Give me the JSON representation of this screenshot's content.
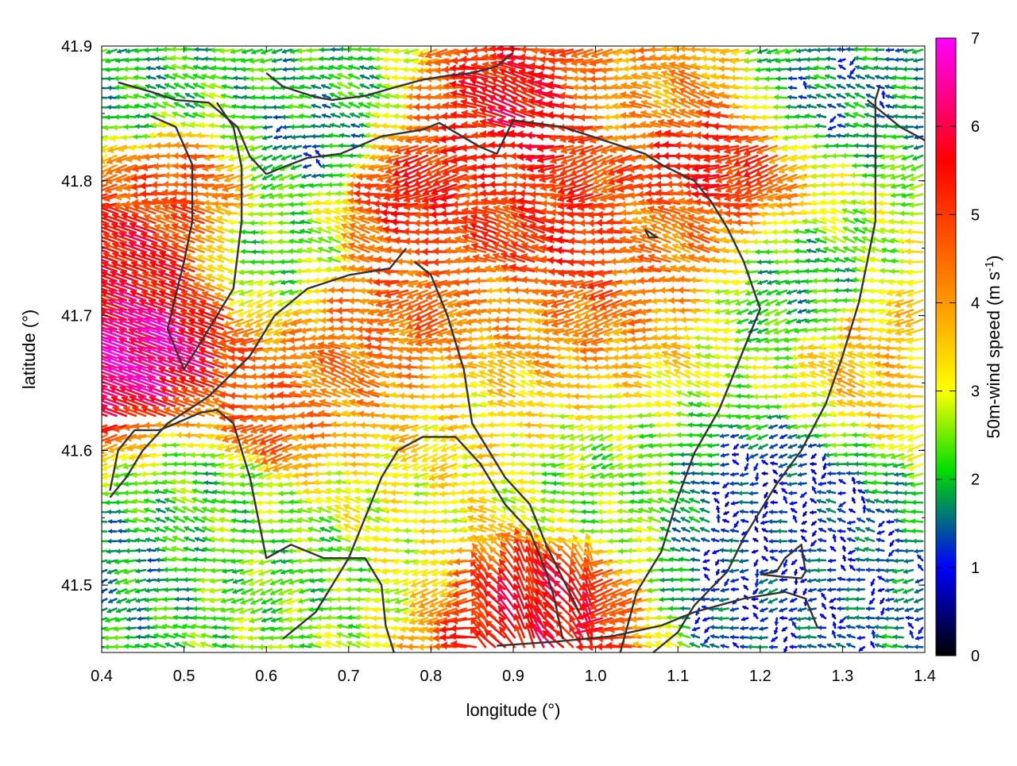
{
  "chart_data": {
    "type": "vector-field",
    "xlabel": "longitude (°)",
    "ylabel": "latitude (°)",
    "xlim": [
      0.4,
      1.4
    ],
    "ylim": [
      41.45,
      41.9
    ],
    "xticks": [
      "0.4",
      "0.5",
      "0.6",
      "0.7",
      "0.8",
      "0.9",
      "1.0",
      "1.1",
      "1.2",
      "1.3",
      "1.4"
    ],
    "yticks": [
      "41.5",
      "41.6",
      "41.7",
      "41.8",
      "41.9"
    ],
    "colorbar": {
      "label": "50m-wind speed (m s",
      "label_sup": "-1",
      "label_end": ")",
      "range": [
        0,
        7
      ],
      "ticks": [
        "0",
        "1",
        "2",
        "3",
        "4",
        "5",
        "6",
        "7"
      ],
      "palette": [
        "#000000",
        "#0000ff",
        "#00dd00",
        "#ffff00",
        "#ff9900",
        "#ff0000",
        "#ff00ff"
      ]
    },
    "grid": false,
    "field_regions": [
      {
        "lon": 0.46,
        "lat": 41.67,
        "speed": 6.5
      },
      {
        "lon": 0.44,
        "lat": 41.74,
        "speed": 5.6
      },
      {
        "lon": 0.5,
        "lat": 41.79,
        "speed": 4.8
      },
      {
        "lon": 0.6,
        "lat": 41.62,
        "speed": 4.6
      },
      {
        "lon": 0.8,
        "lat": 41.79,
        "speed": 5.3
      },
      {
        "lon": 0.9,
        "lat": 41.77,
        "speed": 5.0
      },
      {
        "lon": 0.97,
        "lat": 41.76,
        "speed": 5.2
      },
      {
        "lon": 0.8,
        "lat": 41.72,
        "speed": 4.6
      },
      {
        "lon": 0.75,
        "lat": 41.68,
        "speed": 4.4
      },
      {
        "lon": 0.9,
        "lat": 41.7,
        "speed": 4.0
      },
      {
        "lon": 0.86,
        "lat": 41.63,
        "speed": 3.3
      },
      {
        "lon": 1.14,
        "lat": 41.81,
        "speed": 5.3
      },
      {
        "lon": 1.1,
        "lat": 41.76,
        "speed": 4.3
      },
      {
        "lon": 1.06,
        "lat": 41.86,
        "speed": 4.0
      },
      {
        "lon": 0.95,
        "lat": 41.48,
        "speed": 5.6
      },
      {
        "lon": 0.93,
        "lat": 41.85,
        "speed": 5.6
      },
      {
        "lon": 1.35,
        "lat": 41.67,
        "speed": 3.6
      },
      {
        "lon": 0.55,
        "lat": 41.58,
        "speed": 2.2
      },
      {
        "lon": 1.22,
        "lat": 41.56,
        "speed": 1.1
      },
      {
        "lon": 1.2,
        "lat": 41.5,
        "speed": 1.2
      },
      {
        "lon": 0.42,
        "lat": 41.52,
        "speed": 1.8
      },
      {
        "lon": 0.66,
        "lat": 41.52,
        "speed": 2.3
      },
      {
        "lon": 0.45,
        "lat": 41.87,
        "speed": 2.0
      },
      {
        "lon": 0.66,
        "lat": 41.87,
        "speed": 2.0
      },
      {
        "lon": 0.66,
        "lat": 41.83,
        "speed": 1.6
      },
      {
        "lon": 1.3,
        "lat": 41.87,
        "speed": 1.6
      },
      {
        "lon": 1.25,
        "lat": 41.72,
        "speed": 2.0
      },
      {
        "lon": 1.0,
        "lat": 41.57,
        "speed": 2.5
      },
      {
        "lon": 0.74,
        "lat": 41.55,
        "speed": 3.0
      },
      {
        "lon": 0.62,
        "lat": 41.75,
        "speed": 2.3
      }
    ],
    "contours": [
      [
        [
          0.42,
          41.873
        ],
        [
          0.46,
          41.866
        ],
        [
          0.49,
          41.86
        ],
        [
          0.53,
          41.858
        ],
        [
          0.565,
          41.84
        ],
        [
          0.58,
          41.818
        ],
        [
          0.6,
          41.805
        ],
        [
          0.62,
          41.81
        ],
        [
          0.65,
          41.817
        ],
        [
          0.69,
          41.82
        ],
        [
          0.74,
          41.833
        ],
        [
          0.79,
          41.838
        ],
        [
          0.81,
          41.843
        ],
        [
          0.86,
          41.825
        ],
        [
          0.88,
          41.82
        ],
        [
          0.9,
          41.845
        ],
        [
          0.96,
          41.84
        ],
        [
          1.01,
          41.83
        ],
        [
          1.06,
          41.82
        ],
        [
          1.08,
          41.812
        ],
        [
          1.12,
          41.8
        ],
        [
          1.14,
          41.785
        ],
        [
          1.16,
          41.765
        ],
        [
          1.18,
          41.74
        ],
        [
          1.2,
          41.705
        ],
        [
          1.18,
          41.675
        ],
        [
          1.15,
          41.63
        ],
        [
          1.12,
          41.598
        ],
        [
          1.1,
          41.565
        ],
        [
          1.08,
          41.525
        ],
        [
          1.05,
          41.495
        ],
        [
          1.03,
          41.45
        ]
      ],
      [
        [
          0.46,
          41.848
        ],
        [
          0.49,
          41.84
        ],
        [
          0.51,
          41.812
        ],
        [
          0.51,
          41.77
        ],
        [
          0.5,
          41.74
        ],
        [
          0.49,
          41.715
        ],
        [
          0.48,
          41.69
        ],
        [
          0.5,
          41.66
        ],
        [
          0.53,
          41.69
        ],
        [
          0.56,
          41.72
        ],
        [
          0.57,
          41.77
        ],
        [
          0.57,
          41.81
        ],
        [
          0.56,
          41.84
        ],
        [
          0.54,
          41.858
        ]
      ],
      [
        [
          0.755,
          41.45
        ],
        [
          0.745,
          41.47
        ],
        [
          0.74,
          41.5
        ],
        [
          0.72,
          41.52
        ],
        [
          0.67,
          41.52
        ],
        [
          0.63,
          41.53
        ],
        [
          0.6,
          41.52
        ],
        [
          0.59,
          41.55
        ],
        [
          0.58,
          41.58
        ],
        [
          0.56,
          41.62
        ],
        [
          0.54,
          41.63
        ],
        [
          0.52,
          41.628
        ],
        [
          0.49,
          41.62
        ],
        [
          0.47,
          41.615
        ],
        [
          0.44,
          41.615
        ],
        [
          0.42,
          41.6
        ],
        [
          0.41,
          41.57
        ]
      ],
      [
        [
          0.41,
          41.565
        ],
        [
          0.43,
          41.58
        ],
        [
          0.45,
          41.6
        ],
        [
          0.48,
          41.62
        ],
        [
          0.53,
          41.64
        ],
        [
          0.58,
          41.67
        ],
        [
          0.61,
          41.7
        ],
        [
          0.65,
          41.72
        ],
        [
          0.7,
          41.73
        ],
        [
          0.75,
          41.735
        ],
        [
          0.77,
          41.75
        ]
      ],
      [
        [
          0.78,
          41.74
        ],
        [
          0.8,
          41.73
        ],
        [
          0.82,
          41.7
        ],
        [
          0.84,
          41.66
        ],
        [
          0.85,
          41.62
        ],
        [
          0.87,
          41.6
        ],
        [
          0.89,
          41.58
        ],
        [
          0.92,
          41.56
        ],
        [
          0.94,
          41.53
        ],
        [
          0.96,
          41.505
        ],
        [
          0.98,
          41.48
        ]
      ],
      [
        [
          0.62,
          41.46
        ],
        [
          0.66,
          41.48
        ],
        [
          0.7,
          41.52
        ],
        [
          0.72,
          41.55
        ],
        [
          0.74,
          41.58
        ],
        [
          0.76,
          41.6
        ],
        [
          0.79,
          41.61
        ],
        [
          0.83,
          41.61
        ],
        [
          0.86,
          41.59
        ],
        [
          0.89,
          41.56
        ],
        [
          0.92,
          41.54
        ],
        [
          0.94,
          41.51
        ],
        [
          0.95,
          41.49
        ],
        [
          0.96,
          41.46
        ]
      ],
      [
        [
          1.06,
          41.764
        ],
        [
          1.075,
          41.758
        ],
        [
          1.065,
          41.758
        ],
        [
          1.06,
          41.764
        ]
      ],
      [
        [
          1.2,
          41.508
        ],
        [
          1.22,
          41.51
        ],
        [
          1.23,
          41.52
        ],
        [
          1.25,
          41.53
        ],
        [
          1.255,
          41.51
        ],
        [
          1.25,
          41.505
        ],
        [
          1.23,
          41.506
        ],
        [
          1.2,
          41.508
        ]
      ],
      [
        [
          0.88,
          41.455
        ],
        [
          0.95,
          41.458
        ],
        [
          1.02,
          41.462
        ],
        [
          1.08,
          41.47
        ],
        [
          1.12,
          41.48
        ],
        [
          1.18,
          41.49
        ],
        [
          1.23,
          41.495
        ],
        [
          1.255,
          41.49
        ],
        [
          1.27,
          41.468
        ]
      ],
      [
        [
          1.345,
          41.87
        ],
        [
          1.34,
          41.86
        ],
        [
          1.34,
          41.83
        ],
        [
          1.34,
          41.8
        ],
        [
          1.34,
          41.77
        ],
        [
          1.33,
          41.74
        ],
        [
          1.32,
          41.71
        ],
        [
          1.3,
          41.67
        ],
        [
          1.28,
          41.635
        ],
        [
          1.25,
          41.6
        ],
        [
          1.22,
          41.575
        ],
        [
          1.2,
          41.555
        ],
        [
          1.18,
          41.535
        ],
        [
          1.16,
          41.51
        ],
        [
          1.12,
          41.485
        ],
        [
          1.1,
          41.465
        ],
        [
          1.07,
          41.45
        ]
      ],
      [
        [
          0.6,
          41.88
        ],
        [
          0.62,
          41.87
        ],
        [
          0.66,
          41.862
        ],
        [
          0.68,
          41.86
        ],
        [
          0.72,
          41.863
        ],
        [
          0.76,
          41.87
        ],
        [
          0.79,
          41.875
        ],
        [
          0.82,
          41.878
        ],
        [
          0.85,
          41.88
        ],
        [
          0.88,
          41.885
        ],
        [
          0.9,
          41.895
        ]
      ],
      [
        [
          1.33,
          41.86
        ],
        [
          1.35,
          41.85
        ],
        [
          1.37,
          41.84
        ],
        [
          1.4,
          41.83
        ]
      ]
    ]
  }
}
